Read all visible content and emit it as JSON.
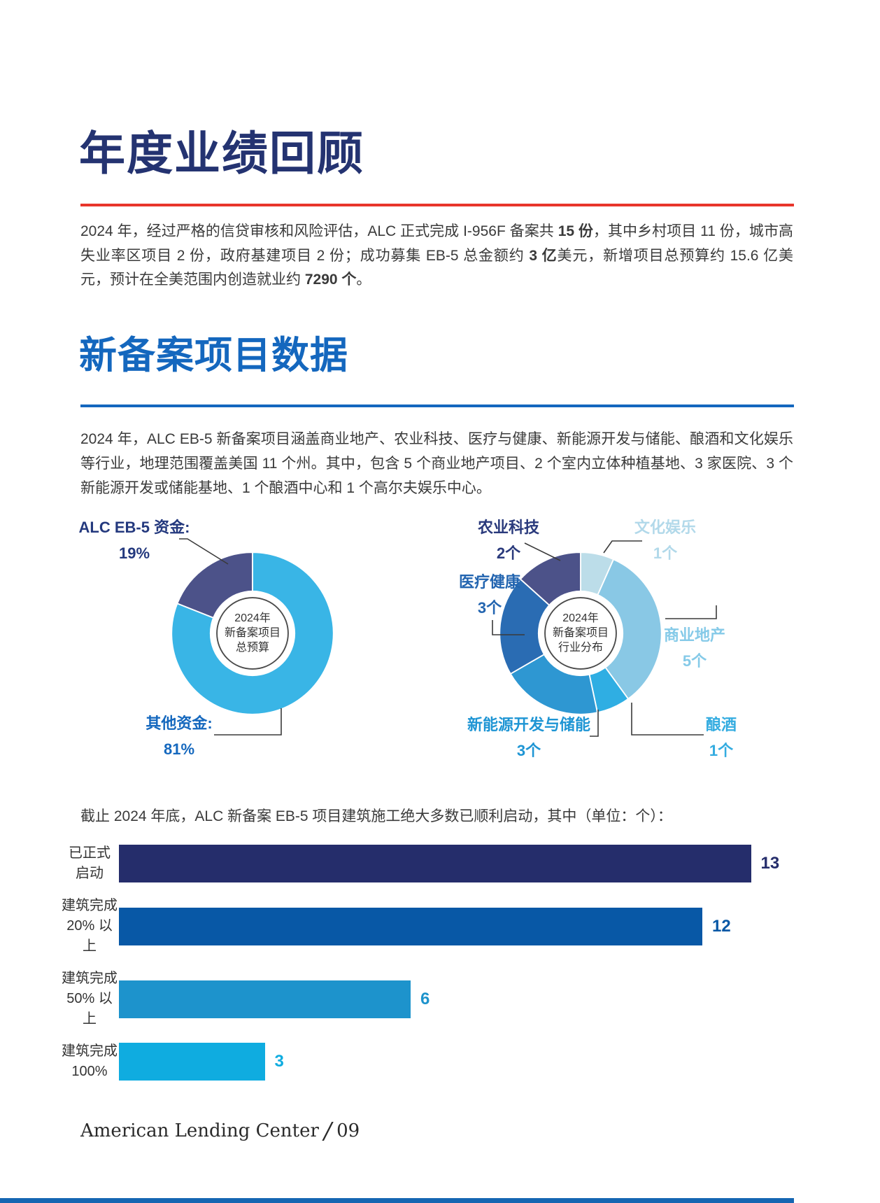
{
  "sections": {
    "annual_review": {
      "title": "年度业绩回顾",
      "paragraph_runs": [
        {
          "t": "2024 年，经过严格的信贷审核和风险评估，ALC 正式完成 I-956F 备案共 ",
          "b": false
        },
        {
          "t": "15 份",
          "b": true
        },
        {
          "t": "，其中乡村项目 11 份，城市高失业率区项目 2 份，政府基建项目 2 份；成功募集 EB-5 总金额约 ",
          "b": false
        },
        {
          "t": "3 亿",
          "b": true
        },
        {
          "t": "美元，新增项目总预算约 15.6 亿美元，预计在全美范围内创造就业约 ",
          "b": false
        },
        {
          "t": "7290 个",
          "b": true
        },
        {
          "t": "。",
          "b": false
        }
      ]
    },
    "new_filings": {
      "title": "新备案项目数据",
      "paragraph": "2024 年，ALC EB-5 新备案项目涵盖商业地产、农业科技、医疗与健康、新能源开发与储能、酿酒和文化娱乐等行业，地理范围覆盖美国 11 个州。其中，包含 5 个商业地产项目、2 个室内立体种植基地、3 家医院、3 个新能源开发或储能基地、1 个酿酒中心和 1 个高尔夫娱乐中心。"
    },
    "construction": {
      "intro": "截止 2024 年底，ALC 新备案 EB-5 项目建筑施工绝大多数已顺利启动，其中（单位：个）："
    }
  },
  "footer": {
    "brand": "American Lending Center",
    "separator": "/",
    "page_number": "09"
  },
  "chart_data": [
    {
      "type": "pie",
      "subtype": "donut",
      "title": "2024年新备案项目总预算",
      "center_lines": [
        "2024年",
        "新备案项目",
        "总预算"
      ],
      "start_angle": -68.4,
      "slices": [
        {
          "label": "ALC EB-5 资金",
          "label_display": "ALC EB-5 资金:",
          "value_pct": 19,
          "display": "19%",
          "color": "#4C5289",
          "label_color": "#24397E"
        },
        {
          "label": "其他资金",
          "label_display": "其他资金:",
          "value_pct": 81,
          "display": "81%",
          "color": "#39B5E6",
          "label_color": "#1568BE"
        }
      ]
    },
    {
      "type": "pie",
      "subtype": "donut",
      "title": "2024年新备案项目行业分布",
      "unit": "个",
      "center_lines": [
        "2024年",
        "新备案项目",
        "行业分布"
      ],
      "start_angle": 0,
      "slices": [
        {
          "label": "文化娱乐",
          "label_display": "文化娱乐",
          "value": 1,
          "display": "1个",
          "color": "#BCDDE9",
          "label_color": "#B2D9EA"
        },
        {
          "label": "商业地产",
          "label_display": "商业地产",
          "value": 5,
          "display": "5个",
          "color": "#89C8E5",
          "label_color": "#85CAE8"
        },
        {
          "label": "酿酒",
          "label_display": "酿酒",
          "value": 1,
          "display": "1个",
          "color": "#2FAEE3",
          "label_color": "#34ACE0"
        },
        {
          "label": "新能源开发与储能",
          "label_display": "新能源开发与储能",
          "value": 3,
          "display": "3个",
          "color": "#2E97D2",
          "label_color": "#1E95D4"
        },
        {
          "label": "医疗健康",
          "label_display": "医疗健康",
          "value": 3,
          "display": "3个",
          "color": "#2A6CB3",
          "label_color": "#2365B0"
        },
        {
          "label": "农业科技",
          "label_display": "农业科技",
          "value": 2,
          "display": "2个",
          "color": "#4C5289",
          "label_color": "#2A3A7C"
        }
      ]
    },
    {
      "type": "bar",
      "orientation": "horizontal",
      "unit": "个",
      "categories": [
        "已正式\n启动",
        "建筑完成\n20% 以上",
        "建筑完成\n50% 以上",
        "建筑完成\n100%"
      ],
      "values": [
        13,
        12,
        6,
        3
      ],
      "colors": [
        "#252D6B",
        "#0858A6",
        "#1D93CC",
        "#0FACE0"
      ],
      "xlim": [
        0,
        13.5
      ],
      "value_labels_shown": true
    }
  ]
}
